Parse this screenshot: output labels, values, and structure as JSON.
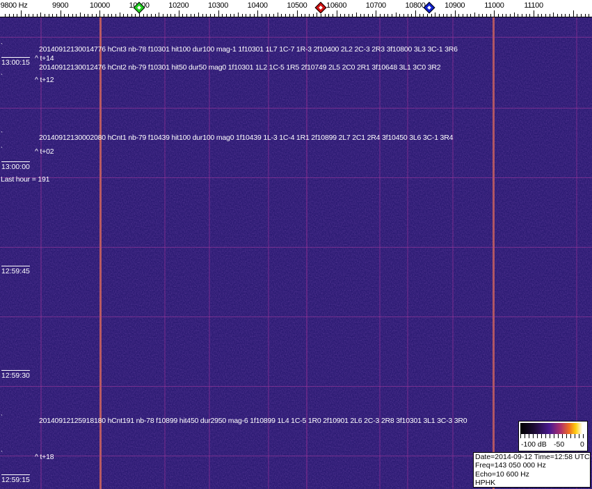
{
  "scale": {
    "labels": [
      "9800 Hz",
      "9900",
      "10000",
      "10100",
      "10200",
      "10300",
      "10400",
      "10500",
      "10600",
      "10700",
      "10800",
      "10900",
      "11000",
      "11100"
    ],
    "markers": [
      {
        "name": "green",
        "freq_hz": 10100,
        "color": "#22cc22"
      },
      {
        "name": "red",
        "freq_hz": 10560,
        "color": "#cc1111"
      },
      {
        "name": "blue",
        "freq_hz": 10835,
        "color": "#1122cc"
      }
    ]
  },
  "annotations": [
    "20140912130014776 hCnt3 nb-78 f10301 hit100 dur100 mag-1 1f10301 1L7 1C-7 1R-3 2f10400 2L2 2C-3 2R3 3f10800 3L3 3C-1 3R6",
    "20140912130012476 hCnt2 nb-79 f10301 hit50 dur50 mag0 1f10301 1L2 1C-5 1R5 2f10749 2L5 2C0 2R1 3f10648 3L1 3C0 3R2",
    "20140912130002080 hCnt1 nb-79 f10439 hit100 dur100 mag0 1f10439 1L-3 1C-4 1R1 2f10899 2L7 2C1 2R4 3f10450 3L6 3C-1 3R4",
    "20140912125918180 hCnt191 nb-78 f10899 hit450 dur2950 mag-6 1f10899 1L4 1C-5 1R0 2f10901 2L6 2C-3 2R8 3f10301 3L1 3C-3 3R0"
  ],
  "offsets": [
    "^ t+14",
    "^ t+12",
    "^ t+02",
    "^ t+18"
  ],
  "time_labels": [
    "13:00:15",
    "13:00:00",
    "12:59:45",
    "12:59:30",
    "12:59:15"
  ],
  "last_hour": "Last hour = 191",
  "colorbar": {
    "min_label": "-100 dB",
    "mid_label": "-50",
    "max_label": "0"
  },
  "info": {
    "date_time": "Date=2014-09-12 Time=12:58 UTC",
    "freq": "Freq=143 050 000 Hz",
    "echo": "Echo=10 600 Hz",
    "station": "HPHK"
  }
}
